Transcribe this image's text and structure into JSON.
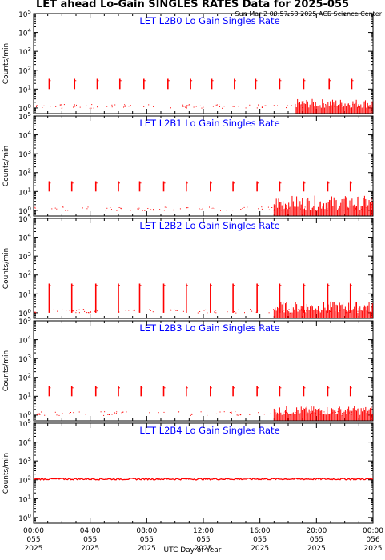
{
  "page": {
    "title": "LET ahead Lo-Gain SINGLES RATES Data for 2025-055",
    "timestamp": "Sun Mar  2 09:57:53 2025 ACE Science Center",
    "xlabel": "UTC Day of Year"
  },
  "colors": {
    "data": "#ff0000",
    "panel_title": "#0000ff",
    "axes": "#000000",
    "background": "#ffffff"
  },
  "chart_data": [
    {
      "type": "line",
      "title": "LET L2B0 Lo Gain Singles Rate",
      "ylabel": "Counts/min",
      "ylim": [
        0.5,
        100000
      ],
      "yscale": "log",
      "yticks": [
        {
          "v": 1,
          "l": "10",
          "e": "0"
        },
        {
          "v": 10,
          "l": "10",
          "e": "1"
        },
        {
          "v": 100,
          "l": "10",
          "e": "2"
        },
        {
          "v": 1000,
          "l": "10",
          "e": "3"
        },
        {
          "v": 10000,
          "l": "10",
          "e": "4"
        },
        {
          "v": 100000,
          "l": "10",
          "e": "5"
        }
      ],
      "spike_hours": [
        1.1,
        2.9,
        4.5,
        6.1,
        7.8,
        9.5,
        11.1,
        12.6,
        14.2,
        15.7,
        17.4,
        19.1,
        20.9,
        22.5
      ],
      "spike_peak": 35,
      "spike_base": 10,
      "baseline": 1,
      "noise_start_hour": 18.5,
      "noise_max": 3
    },
    {
      "type": "line",
      "title": "LET L2B1 Lo Gain Singles Rate",
      "ylabel": "Counts/min",
      "ylim": [
        0.5,
        100000
      ],
      "yscale": "log",
      "yticks": [
        {
          "v": 1,
          "l": "10",
          "e": "0"
        },
        {
          "v": 10,
          "l": "10",
          "e": "1"
        },
        {
          "v": 100,
          "l": "10",
          "e": "2"
        },
        {
          "v": 1000,
          "l": "10",
          "e": "3"
        },
        {
          "v": 10000,
          "l": "10",
          "e": "4"
        },
        {
          "v": 100000,
          "l": "10",
          "e": "5"
        }
      ],
      "spike_hours": [
        1.1,
        2.7,
        4.4,
        6.0,
        7.5,
        9.2,
        10.8,
        12.5,
        14.1,
        15.8,
        17.4,
        19.1,
        20.8,
        22.4
      ],
      "spike_peak": 35,
      "spike_base": 10,
      "baseline": 1,
      "noise_start_hour": 17.0,
      "noise_max": 6
    },
    {
      "type": "line",
      "title": "LET L2B2 Lo Gain Singles Rate",
      "ylabel": "Counts/min",
      "ylim": [
        0.5,
        100000
      ],
      "yscale": "log",
      "yticks": [
        {
          "v": 1,
          "l": "10",
          "e": "0"
        },
        {
          "v": 10,
          "l": "10",
          "e": "1"
        },
        {
          "v": 100,
          "l": "10",
          "e": "2"
        },
        {
          "v": 1000,
          "l": "10",
          "e": "3"
        },
        {
          "v": 10000,
          "l": "10",
          "e": "4"
        },
        {
          "v": 100000,
          "l": "10",
          "e": "5"
        }
      ],
      "spike_hours": [
        1.1,
        2.7,
        4.4,
        6.0,
        7.5,
        9.2,
        10.8,
        12.5,
        14.1,
        15.8,
        17.4,
        19.1,
        20.8,
        22.4
      ],
      "spike_peak": 35,
      "spike_base": 1,
      "baseline": 1,
      "noise_start_hour": 17.0,
      "noise_max": 4
    },
    {
      "type": "line",
      "title": "LET L2B3 Lo Gain Singles Rate",
      "ylabel": "Counts/min",
      "ylim": [
        0.5,
        100000
      ],
      "yscale": "log",
      "yticks": [
        {
          "v": 1,
          "l": "10",
          "e": "0"
        },
        {
          "v": 10,
          "l": "10",
          "e": "1"
        },
        {
          "v": 100,
          "l": "10",
          "e": "2"
        },
        {
          "v": 1000,
          "l": "10",
          "e": "3"
        },
        {
          "v": 10000,
          "l": "10",
          "e": "4"
        },
        {
          "v": 100000,
          "l": "10",
          "e": "5"
        }
      ],
      "spike_hours": [
        1.1,
        2.7,
        4.4,
        6.0,
        7.6,
        9.2,
        10.8,
        12.5,
        14.1,
        15.8,
        17.4,
        19.1,
        20.8,
        22.4
      ],
      "spike_peak": 35,
      "spike_base": 10,
      "baseline": 1,
      "noise_start_hour": 17.0,
      "noise_max": 3
    },
    {
      "type": "line",
      "title": "LET L2B4 Lo Gain Singles Rate",
      "ylabel": "Counts/min",
      "ylim": [
        0.5,
        100000
      ],
      "yscale": "log",
      "yticks": [
        {
          "v": 1,
          "l": "10",
          "e": "0"
        },
        {
          "v": 10,
          "l": "10",
          "e": "1"
        },
        {
          "v": 100,
          "l": "10",
          "e": "2"
        },
        {
          "v": 1000,
          "l": "10",
          "e": "3"
        },
        {
          "v": 10000,
          "l": "10",
          "e": "4"
        },
        {
          "v": 100000,
          "l": "10",
          "e": "5"
        }
      ],
      "flat_value": 110
    }
  ],
  "xaxis": {
    "range_hours": [
      0,
      24
    ],
    "ticks": [
      {
        "h": 0,
        "time": "00:00",
        "doy": "055",
        "year": "2025"
      },
      {
        "h": 4,
        "time": "04:00",
        "doy": "055",
        "year": "2025"
      },
      {
        "h": 8,
        "time": "08:00",
        "doy": "055",
        "year": "2025"
      },
      {
        "h": 12,
        "time": "12:00",
        "doy": "055",
        "year": "2025"
      },
      {
        "h": 16,
        "time": "16:00",
        "doy": "055",
        "year": "2025"
      },
      {
        "h": 20,
        "time": "20:00",
        "doy": "055",
        "year": "2025"
      },
      {
        "h": 24,
        "time": "00:00",
        "doy": "056",
        "year": "2025"
      }
    ]
  }
}
